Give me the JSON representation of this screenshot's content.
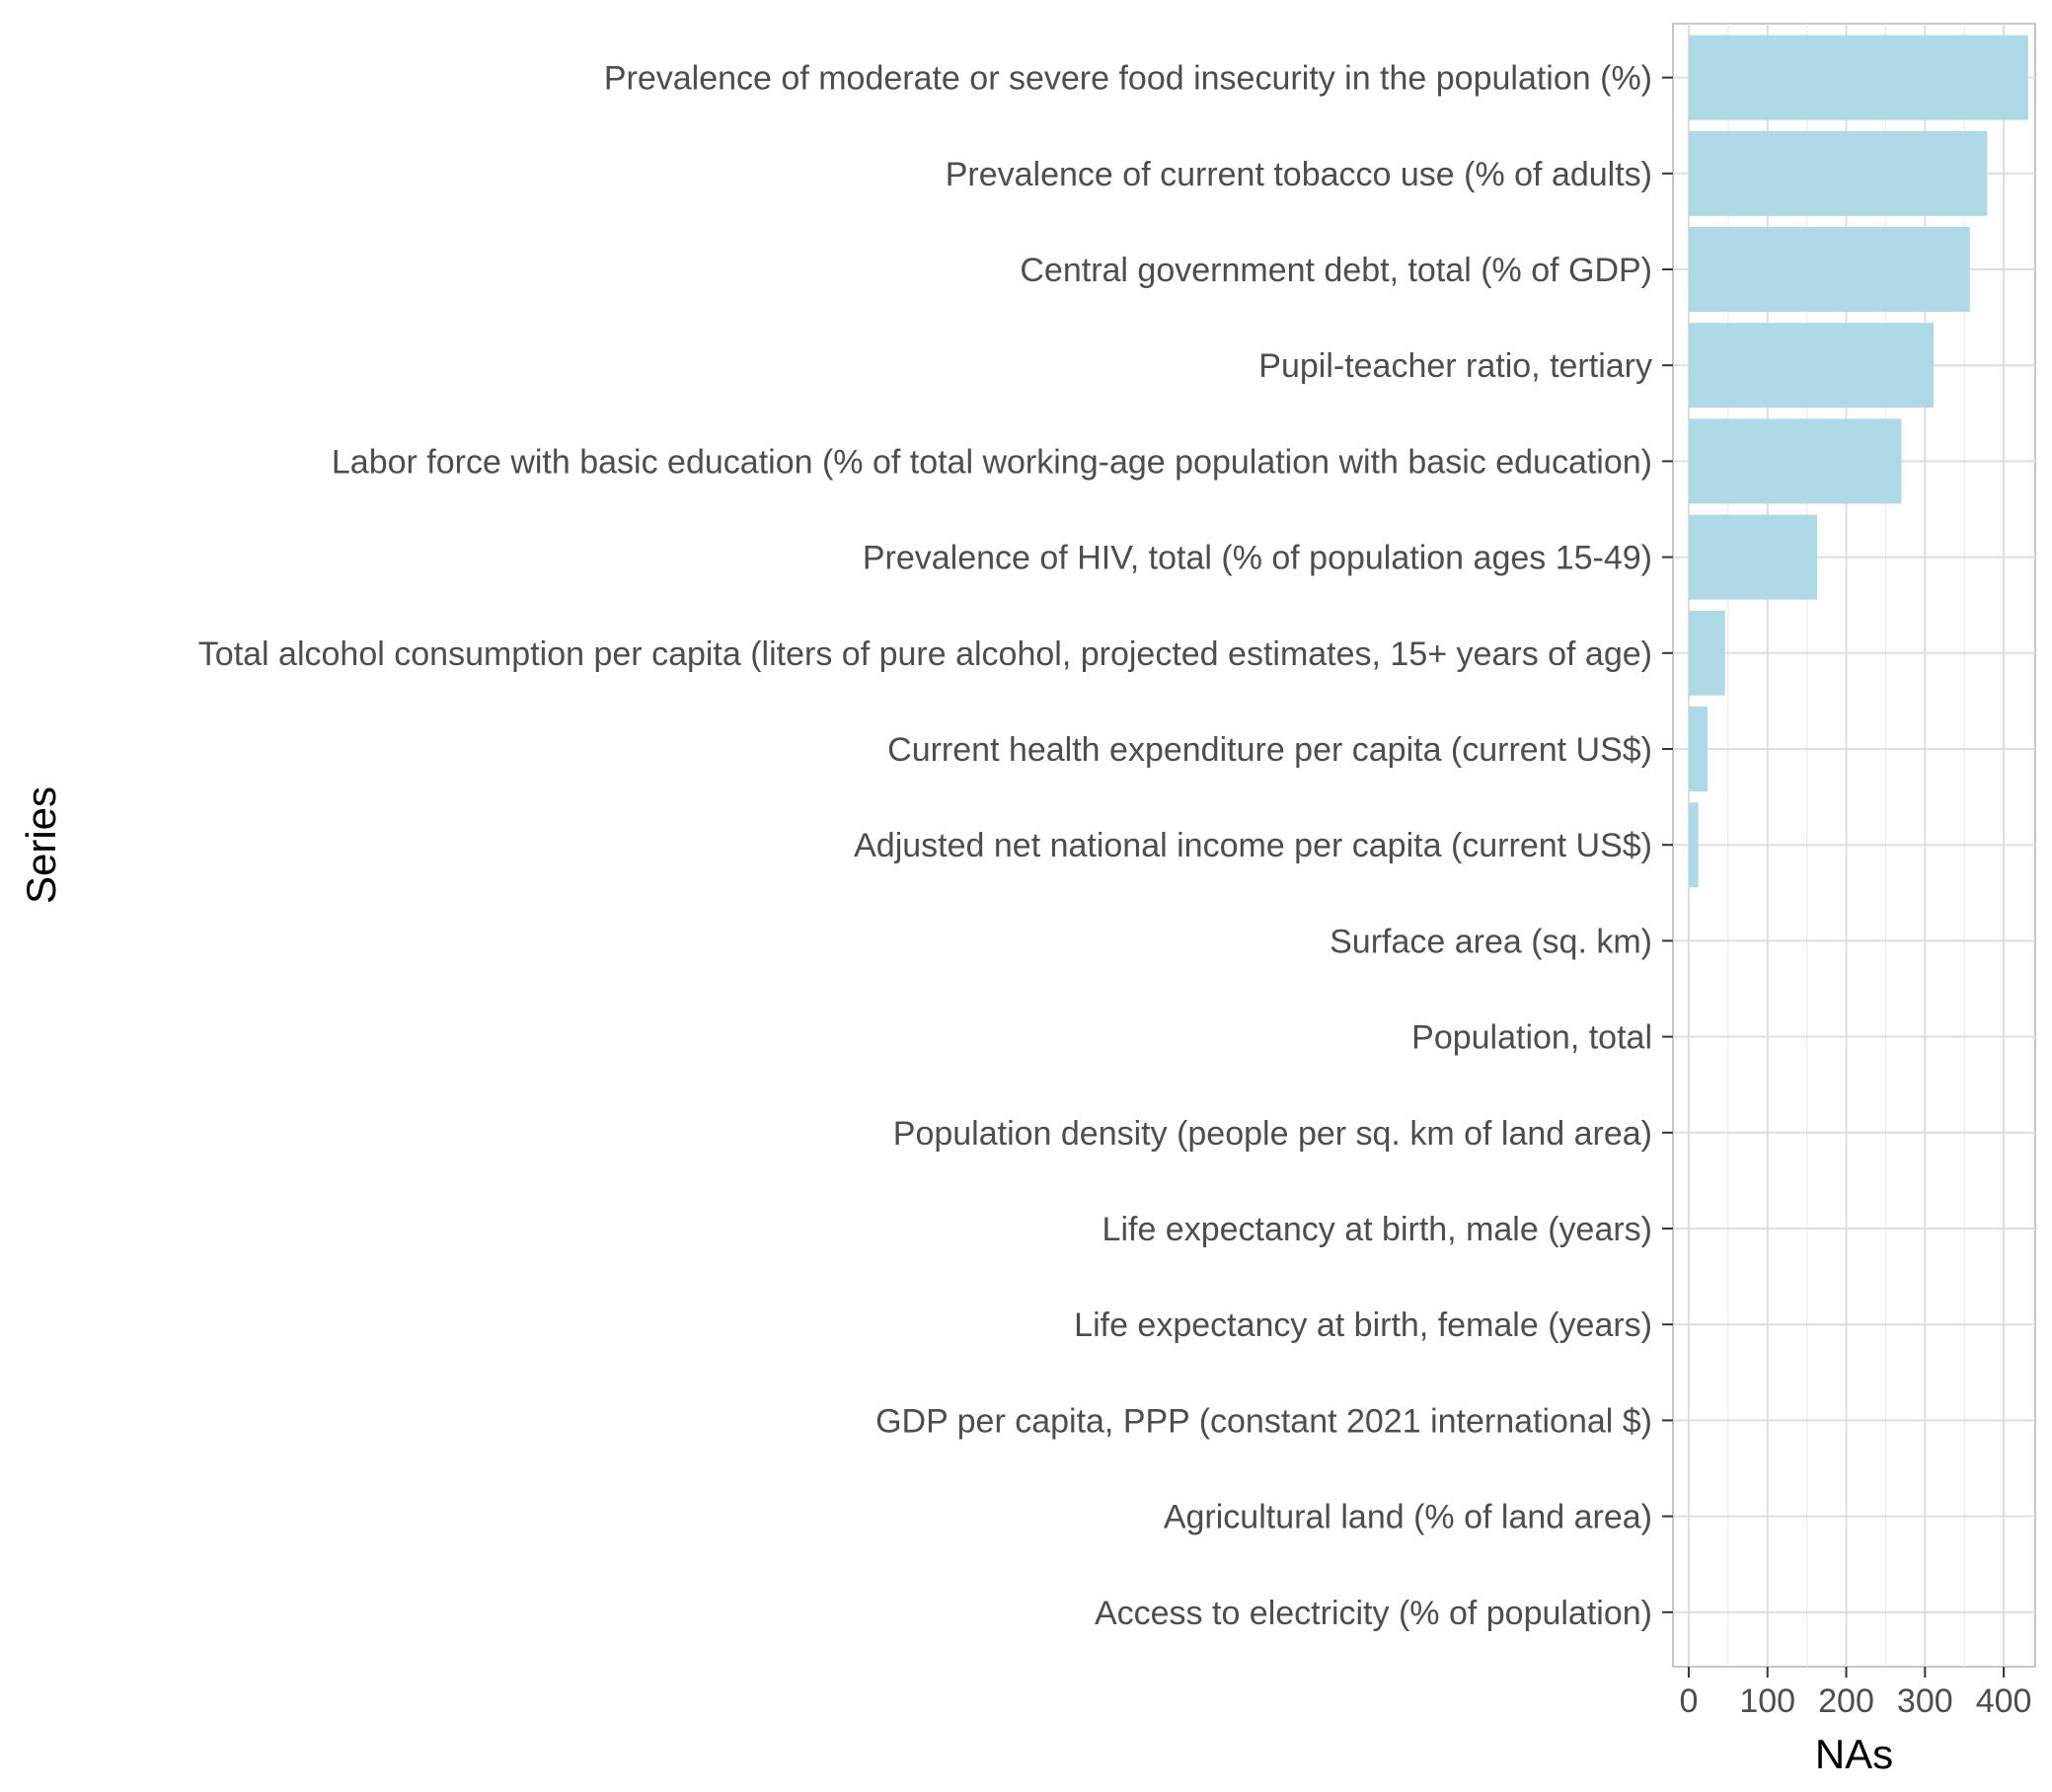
{
  "chart_data": {
    "type": "bar",
    "orientation": "horizontal",
    "xlabel": "NAs",
    "ylabel": "Series",
    "xlim": [
      -20,
      440
    ],
    "xticks": [
      0,
      100,
      200,
      300,
      400
    ],
    "grid": true,
    "bar_color": "#add8e6",
    "categories": [
      "Prevalence of moderate or severe food insecurity in the population (%)",
      "Prevalence of current tobacco use (% of adults)",
      "Central government debt, total (% of GDP)",
      "Pupil-teacher ratio, tertiary",
      "Labor force with basic education (% of total working-age population with basic education)",
      "Prevalence of HIV, total (% of population ages 15-49)",
      "Total alcohol consumption per capita (liters of pure alcohol, projected estimates, 15+ years of age)",
      "Current health expenditure per capita (current US$)",
      "Adjusted net national income per capita (current US$)",
      "Surface area (sq. km)",
      "Population, total",
      "Population density (people per sq. km of land area)",
      "Life expectancy at birth, male (years)",
      "Life expectancy at birth, female (years)",
      "GDP per capita, PPP (constant 2021 international $)",
      "Agricultural land (% of land area)",
      "Access to electricity (% of population)"
    ],
    "values": [
      431,
      379,
      357,
      311,
      270,
      163,
      46,
      24,
      12,
      0,
      0,
      0,
      0,
      0,
      0,
      0,
      0
    ]
  }
}
